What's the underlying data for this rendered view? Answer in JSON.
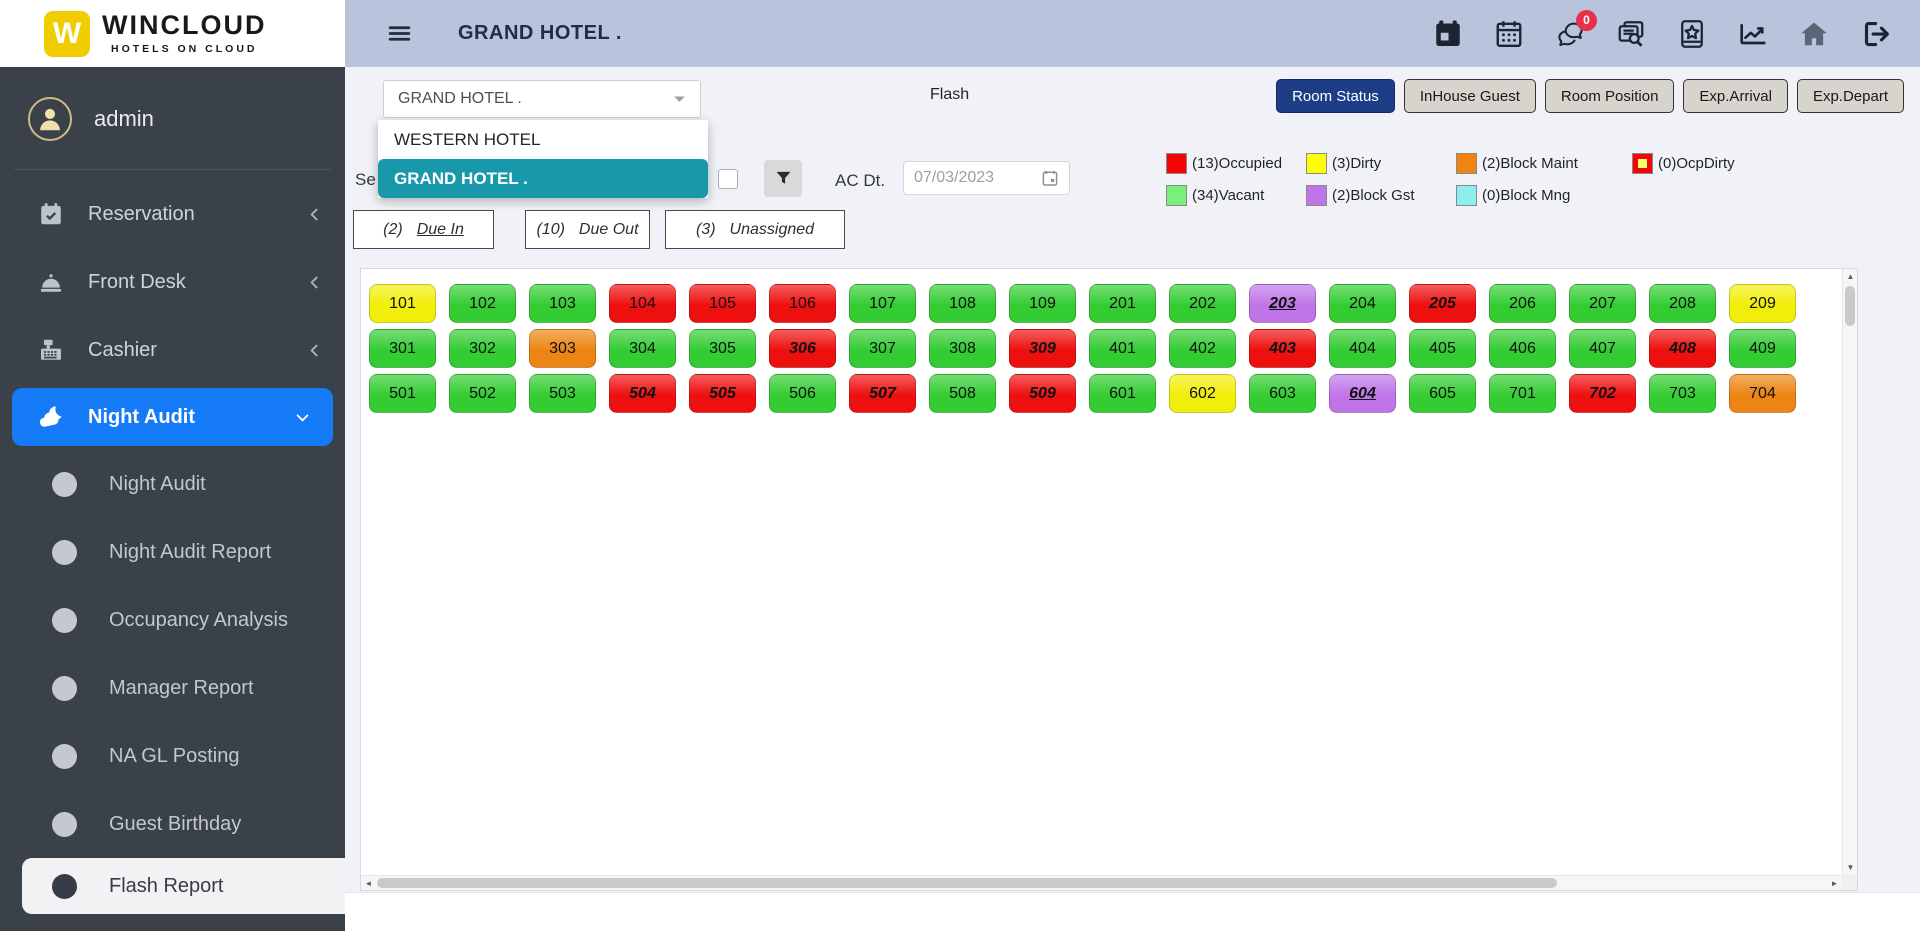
{
  "brand": {
    "monogram": "W",
    "name": "WINCLOUD",
    "tagline": "HOTELS ON CLOUD"
  },
  "user": {
    "name": "admin"
  },
  "topbar": {
    "title": "GRAND HOTEL .",
    "icons": [
      {
        "name": "calendar-solid"
      },
      {
        "name": "calendar-grid"
      },
      {
        "name": "chat",
        "badge": "0"
      },
      {
        "name": "doc-search"
      },
      {
        "name": "star-square"
      },
      {
        "name": "chart-line"
      },
      {
        "name": "home"
      },
      {
        "name": "logout"
      }
    ]
  },
  "sidebar": {
    "items": [
      {
        "label": "Reservation",
        "icon": "calendar-check",
        "chevron": "left",
        "active": false
      },
      {
        "label": "Front Desk",
        "icon": "cloche",
        "chevron": "left",
        "active": false
      },
      {
        "label": "Cashier",
        "icon": "cash-register",
        "chevron": "left",
        "active": false
      },
      {
        "label": "Night Audit",
        "icon": "cloud-moon",
        "chevron": "down",
        "active": true
      }
    ],
    "night_audit_children": [
      {
        "label": "Night Audit",
        "active": false
      },
      {
        "label": "Night Audit Report",
        "active": false
      },
      {
        "label": "Occupancy Analysis",
        "active": false
      },
      {
        "label": "Manager Report",
        "active": false
      },
      {
        "label": "NA GL Posting",
        "active": false
      },
      {
        "label": "Guest Birthday",
        "active": false
      },
      {
        "label": "Flash Report",
        "active": true
      }
    ]
  },
  "toolbar": {
    "select_value": "GRAND HOTEL .",
    "page_title": "Flash",
    "tabs": [
      {
        "label": "Room Status",
        "active": true
      },
      {
        "label": "InHouse Guest",
        "active": false
      },
      {
        "label": "Room Position",
        "active": false
      },
      {
        "label": "Exp.Arrival",
        "active": false
      },
      {
        "label": "Exp.Depart",
        "active": false
      }
    ]
  },
  "hotel_dropdown": {
    "options": [
      "WESTERN HOTEL",
      "GRAND HOTEL ."
    ],
    "selected": "GRAND HOTEL ."
  },
  "filter_row": {
    "partial_label": "Se",
    "ac_dt_label": "AC Dt.",
    "ac_dt_value": "07/03/2023"
  },
  "due_buttons": [
    {
      "count": "(2)",
      "label": "Due In",
      "underlined": true
    },
    {
      "count": "(10)",
      "label": "Due Out",
      "underlined": false
    },
    {
      "count": "(3)",
      "label": "Unassigned",
      "underlined": false
    }
  ],
  "legend": {
    "items": [
      {
        "count": "(13)",
        "label": "Occupied",
        "key": "occupied"
      },
      {
        "count": "(3)",
        "label": "Dirty",
        "key": "dirty"
      },
      {
        "count": "(2)",
        "label": "Block Maint",
        "key": "block-maint"
      },
      {
        "count": "(0)",
        "label": "OcpDirty",
        "key": "ocp-dirty"
      },
      {
        "count": "(34)",
        "label": "Vacant",
        "key": "vacant"
      },
      {
        "count": "(2)",
        "label": "Block Gst",
        "key": "block-gst"
      },
      {
        "count": "(0)",
        "label": "Block Mng",
        "key": "block-mng"
      }
    ]
  },
  "rooms": {
    "rows": [
      [
        {
          "num": "101",
          "status": "dirty",
          "due": null
        },
        {
          "num": "102",
          "status": "vacant",
          "due": null
        },
        {
          "num": "103",
          "status": "vacant",
          "due": null
        },
        {
          "num": "104",
          "status": "occupied",
          "due": null
        },
        {
          "num": "105",
          "status": "occupied",
          "due": null
        },
        {
          "num": "106",
          "status": "occupied",
          "due": null
        },
        {
          "num": "107",
          "status": "vacant",
          "due": null
        },
        {
          "num": "108",
          "status": "vacant",
          "due": null
        },
        {
          "num": "109",
          "status": "vacant",
          "due": null
        },
        {
          "num": "201",
          "status": "vacant",
          "due": null
        },
        {
          "num": "202",
          "status": "vacant",
          "due": null
        },
        {
          "num": "203",
          "status": "block-gst",
          "due": "due-in"
        },
        {
          "num": "204",
          "status": "vacant",
          "due": null
        },
        {
          "num": "205",
          "status": "occupied",
          "due": "due-out"
        },
        {
          "num": "206",
          "status": "vacant",
          "due": null
        },
        {
          "num": "207",
          "status": "vacant",
          "due": null
        },
        {
          "num": "208",
          "status": "vacant",
          "due": null
        },
        {
          "num": "209",
          "status": "dirty",
          "due": null
        }
      ],
      [
        {
          "num": "301",
          "status": "vacant",
          "due": null
        },
        {
          "num": "302",
          "status": "vacant",
          "due": null
        },
        {
          "num": "303",
          "status": "block-maint",
          "due": null
        },
        {
          "num": "304",
          "status": "vacant",
          "due": null
        },
        {
          "num": "305",
          "status": "vacant",
          "due": null
        },
        {
          "num": "306",
          "status": "occupied",
          "due": "due-out"
        },
        {
          "num": "307",
          "status": "vacant",
          "due": null
        },
        {
          "num": "308",
          "status": "vacant",
          "due": null
        },
        {
          "num": "309",
          "status": "occupied",
          "due": "due-out"
        },
        {
          "num": "401",
          "status": "vacant",
          "due": null
        },
        {
          "num": "402",
          "status": "vacant",
          "due": null
        },
        {
          "num": "403",
          "status": "occupied",
          "due": "due-out"
        },
        {
          "num": "404",
          "status": "vacant",
          "due": null
        },
        {
          "num": "405",
          "status": "vacant",
          "due": null
        },
        {
          "num": "406",
          "status": "vacant",
          "due": null
        },
        {
          "num": "407",
          "status": "vacant",
          "due": null
        },
        {
          "num": "408",
          "status": "occupied",
          "due": "due-out"
        },
        {
          "num": "409",
          "status": "vacant",
          "due": null
        }
      ],
      [
        {
          "num": "501",
          "status": "vacant",
          "due": null
        },
        {
          "num": "502",
          "status": "vacant",
          "due": null
        },
        {
          "num": "503",
          "status": "vacant",
          "due": null
        },
        {
          "num": "504",
          "status": "occupied",
          "due": "due-out"
        },
        {
          "num": "505",
          "status": "occupied",
          "due": "due-out"
        },
        {
          "num": "506",
          "status": "vacant",
          "due": null
        },
        {
          "num": "507",
          "status": "occupied",
          "due": "due-out"
        },
        {
          "num": "508",
          "status": "vacant",
          "due": null
        },
        {
          "num": "509",
          "status": "occupied",
          "due": "due-out"
        },
        {
          "num": "601",
          "status": "vacant",
          "due": null
        },
        {
          "num": "602",
          "status": "dirty",
          "due": null
        },
        {
          "num": "603",
          "status": "vacant",
          "due": null
        },
        {
          "num": "604",
          "status": "block-gst",
          "due": "due-in"
        },
        {
          "num": "605",
          "status": "vacant",
          "due": null
        },
        {
          "num": "701",
          "status": "vacant",
          "due": null
        },
        {
          "num": "702",
          "status": "occupied",
          "due": "due-out"
        },
        {
          "num": "703",
          "status": "vacant",
          "due": null
        },
        {
          "num": "704",
          "status": "block-maint",
          "due": null
        }
      ]
    ]
  },
  "colors": {
    "occupied": "#ee0f0f",
    "vacant": "#33cc33",
    "dirty": "#f2ee0b",
    "block_maint": "#ec8513",
    "block_gst": "#bf75e8",
    "block_mng": "#8deef0",
    "sidebar": "#3a4149",
    "sidebar_active": "#157af6",
    "topbar": "#b8c3dc",
    "select_teal": "#1799ab",
    "tab_active_navy": "#1e3d87",
    "logo_yellow": "#f0cd00",
    "badge_red": "#e8304a"
  }
}
